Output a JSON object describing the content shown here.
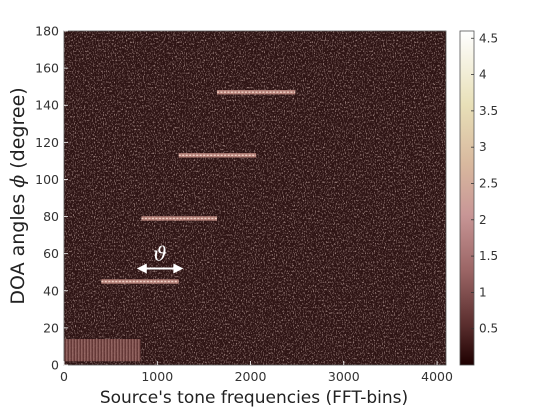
{
  "chart_data": {
    "type": "heatmap",
    "xlabel": "Source's tone frequencies (FFT-bins)",
    "ylabel_text": "DOA angles ",
    "ylabel_symbol": "ϕ",
    "ylabel_suffix": " (degree)",
    "xlim": [
      0,
      4096
    ],
    "ylim": [
      0,
      180
    ],
    "x_ticks": [
      0,
      1000,
      2000,
      3000,
      4000
    ],
    "y_ticks": [
      0,
      20,
      40,
      60,
      80,
      100,
      120,
      140,
      160,
      180
    ],
    "colorbar": {
      "range": [
        0,
        4.6
      ],
      "ticks": [
        "0.5",
        "1",
        "1.5",
        "2",
        "2.5",
        "3",
        "3.5",
        "4",
        "4.5"
      ],
      "colormap": "pink"
    },
    "background_level": 0.6,
    "segments": [
      {
        "x_start": 400,
        "x_end": 1230,
        "y": 45,
        "level": 1.8
      },
      {
        "x_start": 830,
        "x_end": 1640,
        "y": 79,
        "level": 1.8
      },
      {
        "x_start": 1230,
        "x_end": 2060,
        "y": 113,
        "level": 1.8
      },
      {
        "x_start": 1640,
        "x_end": 2480,
        "y": 147,
        "level": 1.8
      }
    ],
    "low_band": {
      "x_start": 0,
      "x_end": 820,
      "y_start": 2,
      "y_end": 14,
      "level": 1.1
    },
    "annotation": {
      "symbol": "ϑ",
      "x_start": 780,
      "x_end": 1280,
      "y": 52
    }
  }
}
